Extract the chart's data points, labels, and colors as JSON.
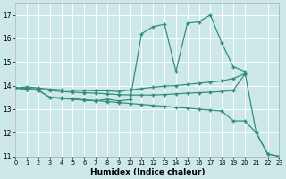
{
  "xlabel": "Humidex (Indice chaleur)",
  "xlim": [
    0,
    23
  ],
  "ylim": [
    11,
    17.5
  ],
  "yticks": [
    11,
    12,
    13,
    14,
    15,
    16,
    17
  ],
  "xticks": [
    0,
    1,
    2,
    3,
    4,
    5,
    6,
    7,
    8,
    9,
    10,
    11,
    12,
    13,
    14,
    15,
    16,
    17,
    18,
    19,
    20,
    21,
    22,
    23
  ],
  "bg_color": "#cce8e8",
  "grid_color": "#ffffff",
  "line_color": "#2e8b74",
  "line1": {
    "x": [
      0,
      1,
      2,
      3,
      4,
      5,
      6,
      7,
      8,
      9,
      10,
      11,
      12,
      13,
      14,
      15,
      16,
      17,
      18,
      19,
      20
    ],
    "y": [
      13.9,
      13.95,
      13.9,
      13.85,
      13.82,
      13.8,
      13.8,
      13.78,
      13.78,
      13.75,
      13.82,
      13.88,
      13.93,
      13.98,
      14.0,
      14.05,
      14.1,
      14.15,
      14.2,
      14.3,
      14.5
    ]
  },
  "line2": {
    "x": [
      0,
      1,
      2,
      3,
      4,
      5,
      6,
      7,
      8,
      9,
      10,
      11,
      12,
      13,
      14,
      15,
      16,
      17,
      18,
      19,
      20
    ],
    "y": [
      13.9,
      13.9,
      13.85,
      13.8,
      13.75,
      13.72,
      13.7,
      13.68,
      13.65,
      13.62,
      13.6,
      13.6,
      13.6,
      13.62,
      13.65,
      13.68,
      13.7,
      13.72,
      13.75,
      13.8,
      14.48
    ]
  },
  "line3": {
    "x": [
      0,
      1,
      2,
      3,
      4,
      5,
      6,
      7,
      8,
      9,
      10,
      11,
      12,
      13,
      14,
      15,
      16,
      17,
      18,
      19,
      20,
      21,
      22,
      23
    ],
    "y": [
      13.9,
      13.85,
      13.8,
      13.5,
      13.48,
      13.44,
      13.4,
      13.36,
      13.32,
      13.28,
      13.24,
      13.2,
      13.16,
      13.12,
      13.08,
      13.04,
      13.0,
      12.96,
      12.92,
      12.5,
      12.5,
      12.0,
      11.1,
      11.0
    ]
  },
  "line4": {
    "x": [
      0,
      1,
      2,
      3,
      4,
      5,
      6,
      7,
      8,
      9,
      10,
      11,
      12,
      13,
      14,
      15,
      16,
      17,
      18,
      19,
      20,
      21,
      22,
      23
    ],
    "y": [
      13.9,
      13.85,
      13.8,
      13.5,
      13.45,
      13.42,
      13.38,
      13.35,
      13.42,
      13.35,
      13.4,
      16.2,
      16.5,
      16.6,
      14.6,
      16.65,
      16.7,
      17.0,
      15.8,
      14.8,
      14.6,
      12.0,
      11.1,
      11.0
    ]
  }
}
